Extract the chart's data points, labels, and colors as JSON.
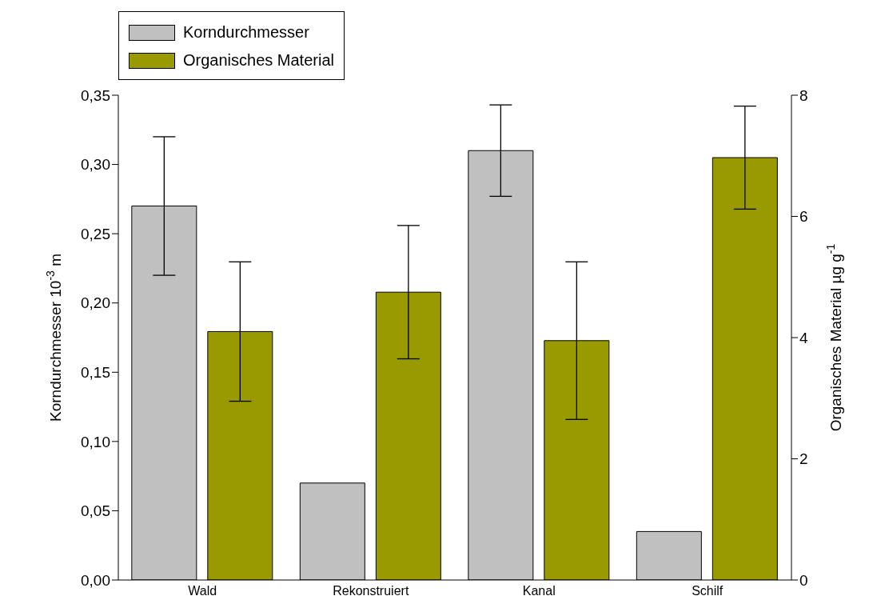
{
  "chart_data": {
    "type": "bar",
    "categories": [
      "Wald",
      "Rekonstruiert",
      "Kanal",
      "Schilf"
    ],
    "ylabel": "Korndurchmesser 10$^{-3}$ m",
    "y2label": "Organisches Material µg g$^{-1}$",
    "series": [
      {
        "name": "Korndurchmesser",
        "color": "#c0c0c0",
        "values": [
          0.27,
          0.07,
          0.31,
          0.035
        ],
        "errors": [
          0.05,
          null,
          0.033,
          null
        ]
      },
      {
        "name": "Organisches Material",
        "color": "#999900",
        "axis": "y2",
        "values": [
          4.1,
          4.75,
          3.95,
          6.97
        ],
        "errors": [
          1.15,
          1.1,
          1.3,
          0.85
        ]
      }
    ],
    "ylim": [
      0,
      0.35
    ],
    "yticks": [
      {
        "value": 0,
        "label": "0,00"
      },
      {
        "value": 0.05,
        "label": "0,05"
      },
      {
        "value": 0.1,
        "label": "0,10"
      },
      {
        "value": 0.15,
        "label": "0,15"
      },
      {
        "value": 0.2,
        "label": "0,20"
      },
      {
        "value": 0.25,
        "label": "0,25"
      },
      {
        "value": 0.3,
        "label": "0,30"
      },
      {
        "value": 0.35,
        "label": "0,35"
      }
    ],
    "y2lim": [
      0,
      8
    ],
    "y2ticks": [
      0,
      2,
      4,
      6,
      8
    ],
    "legend": "top left",
    "grid": false
  }
}
